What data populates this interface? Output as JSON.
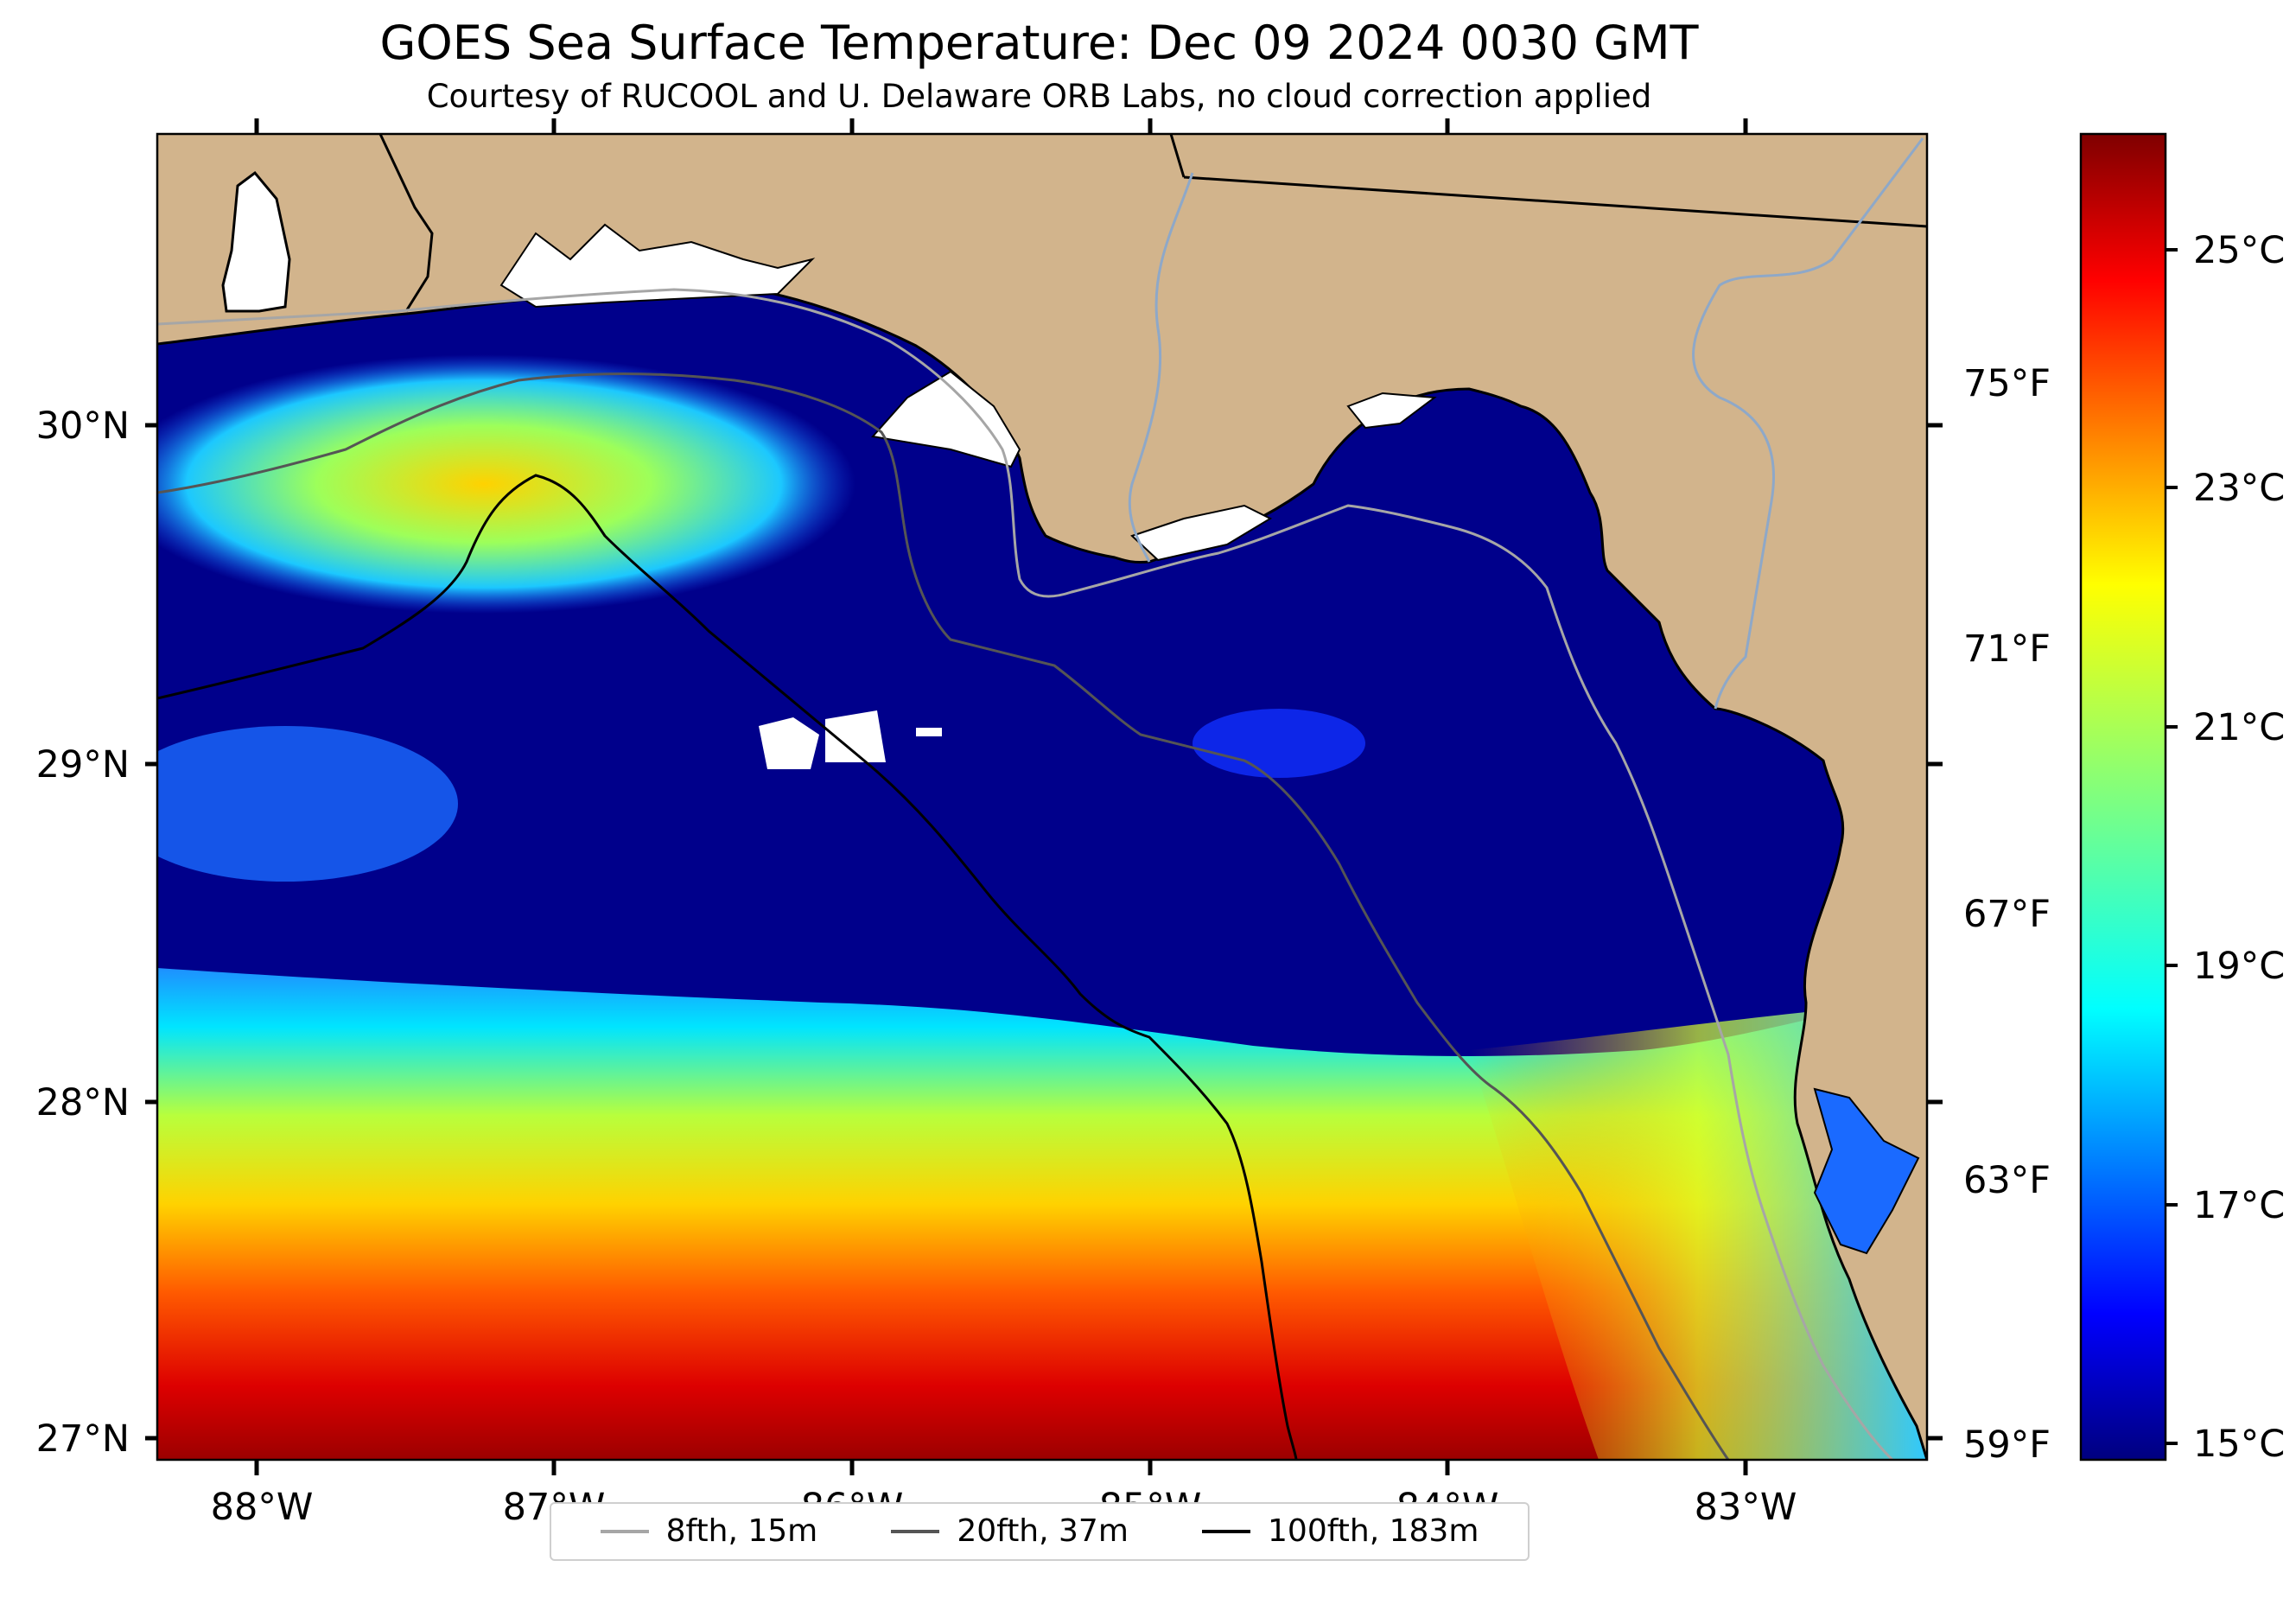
{
  "title": "GOES Sea Surface Temperature: Dec 09 2024 0030 GMT",
  "subtitle": "Courtesy of RUCOOL and U. Delaware ORB Labs, no cloud correction applied",
  "map": {
    "lon_labels": [
      "88°W",
      "87°W",
      "86°W",
      "85°W",
      "84°W",
      "83°W"
    ],
    "lat_labels": [
      "30°N",
      "29°N",
      "28°N",
      "27°N"
    ],
    "land_color": "#d2b48c",
    "cloud_color": "#ffffff"
  },
  "colorbar": {
    "celsius_labels": [
      "25°C",
      "23°C",
      "21°C",
      "19°C",
      "17°C",
      "15°C"
    ],
    "fahrenheit_labels": [
      "75°F",
      "71°F",
      "67°F",
      "63°F",
      "59°F"
    ],
    "colormap": "jet",
    "range_c": [
      14.8,
      26
    ]
  },
  "legend": {
    "items": [
      {
        "label": "8fth, 15m",
        "color": "#a6a6a6"
      },
      {
        "label": "20fth, 37m",
        "color": "#555555"
      },
      {
        "label": "100fth, 183m",
        "color": "#000000"
      }
    ]
  }
}
